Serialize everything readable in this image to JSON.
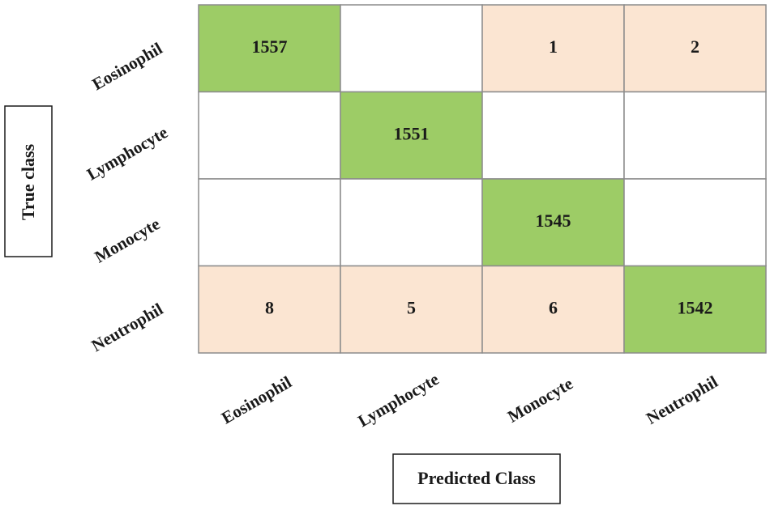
{
  "chart_data": {
    "type": "heatmap",
    "title": "",
    "xlabel": "Predicted Class",
    "ylabel": "True class",
    "row_labels": [
      "Eosinophil",
      "Lymphocyte",
      "Monocyte",
      "Neutrophil"
    ],
    "col_labels": [
      "Eosinophil",
      "Lymphocyte",
      "Monocyte",
      "Neutrophil"
    ],
    "values": [
      [
        1557,
        null,
        1,
        2
      ],
      [
        null,
        1551,
        null,
        null
      ],
      [
        null,
        null,
        1545,
        null
      ],
      [
        8,
        5,
        6,
        1542
      ]
    ],
    "colors": {
      "diagonal": "#9dcc66",
      "off_diagonal_nonzero": "#fbe5d2",
      "empty": "#ffffff",
      "grid": "#8c8c8c",
      "text": "#1a1a1a"
    }
  }
}
